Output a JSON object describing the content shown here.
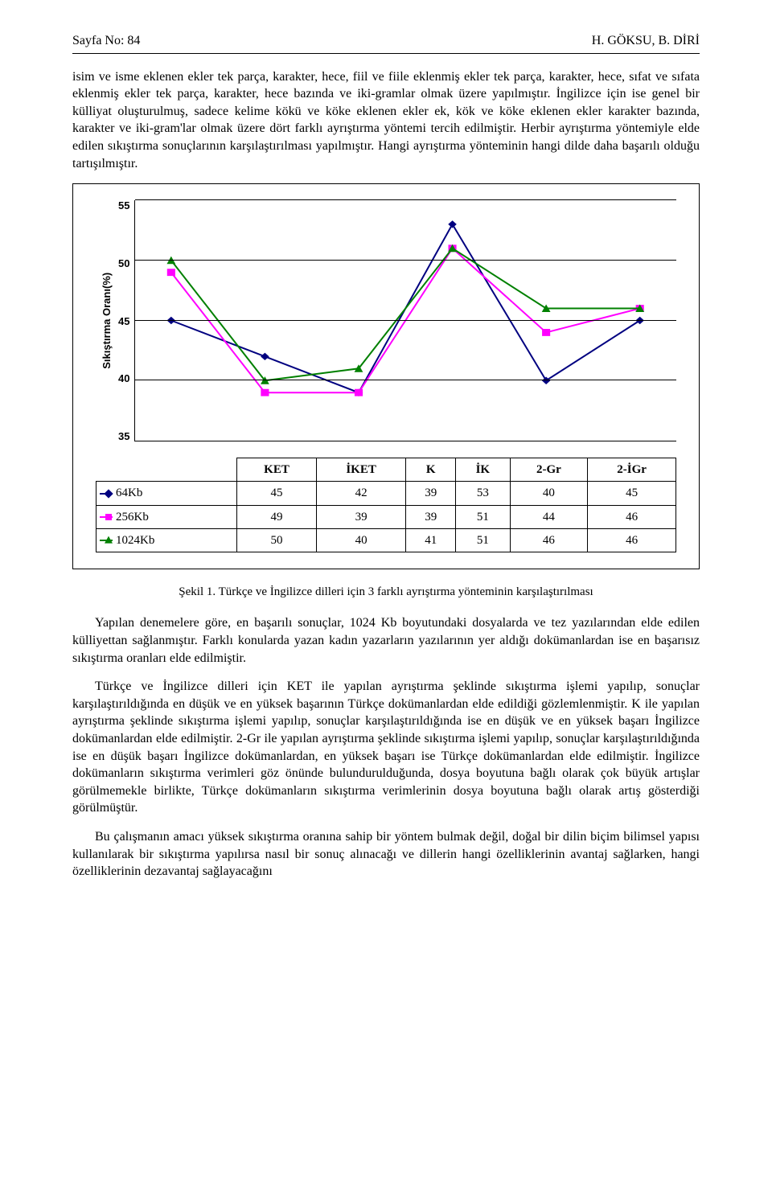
{
  "header": {
    "left": "Sayfa No: 84",
    "right": "H. GÖKSU, B. DİRİ"
  },
  "paragraphs": {
    "p1": "isim ve isme eklenen ekler tek parça, karakter, hece, fiil ve fiile eklenmiş ekler tek parça, karakter, hece, sıfat ve sıfata eklenmiş ekler tek parça, karakter, hece bazında ve iki-gramlar olmak üzere yapılmıştır. İngilizce için ise genel bir külliyat oluşturulmuş, sadece kelime kökü ve köke eklenen ekler ek, kök ve köke eklenen ekler karakter bazında, karakter ve iki-gram'lar olmak üzere dört farklı ayrıştırma yöntemi tercih edilmiştir. Herbir ayrıştırma yöntemiyle elde edilen sıkıştırma sonuçlarının karşılaştırılması yapılmıştır. Hangi ayrıştırma yönteminin hangi dilde daha başarılı olduğu tartışılmıştır.",
    "caption": "Şekil 1. Türkçe ve İngilizce dilleri için 3 farklı ayrıştırma yönteminin karşılaştırılması",
    "p2": "Yapılan denemelere göre, en başarılı sonuçlar, 1024 Kb boyutundaki dosyalarda ve tez yazılarından elde edilen külliyettan sağlanmıştır. Farklı konularda yazan kadın yazarların yazılarının yer aldığı dokümanlardan ise en başarısız sıkıştırma oranları elde edilmiştir.",
    "p3": "Türkçe ve İngilizce dilleri için KET ile yapılan ayrıştırma şeklinde sıkıştırma işlemi yapılıp, sonuçlar karşılaştırıldığında en düşük ve en yüksek başarının Türkçe dokümanlardan elde edildiği gözlemlenmiştir. K ile yapılan ayrıştırma şeklinde sıkıştırma işlemi yapılıp, sonuçlar karşılaştırıldığında ise en düşük ve en yüksek başarı İngilizce dokümanlardan elde edilmiştir. 2-Gr ile yapılan ayrıştırma şeklinde sıkıştırma işlemi yapılıp, sonuçlar karşılaştırıldığında ise en düşük başarı İngilizce dokümanlardan, en yüksek başarı ise Türkçe dokümanlardan elde edilmiştir. İngilizce dokümanların sıkıştırma verimleri göz önünde bulundurulduğunda, dosya boyutuna bağlı olarak çok büyük artışlar görülmemekle birlikte, Türkçe dokümanların sıkıştırma verimlerinin dosya boyutuna bağlı olarak artış gösterdiği görülmüştür.",
    "p4": "Bu çalışmanın amacı yüksek sıkıştırma oranına sahip bir yöntem bulmak değil, doğal bir dilin biçim bilimsel yapısı kullanılarak bir sıkıştırma yapılırsa nasıl bir sonuç alınacağı ve dillerin hangi özelliklerinin avantaj sağlarken, hangi özelliklerinin dezavantaj sağlayacağını"
  },
  "chart": {
    "type": "line",
    "ylabel": "Sıkıştırma Oranı(%)",
    "ylim": [
      35,
      55
    ],
    "ytick_step": 5,
    "yticks": [
      "55",
      "50",
      "45",
      "40",
      "35"
    ],
    "categories": [
      "KET",
      "İKET",
      "K",
      "İK",
      "2-Gr",
      "2-İGr"
    ],
    "grid_color": "#000000",
    "background_color": "#ffffff",
    "line_width": 2,
    "marker_size": 8,
    "series": [
      {
        "name": "64Kb",
        "color": "#000080",
        "marker": "diamond",
        "values": [
          45,
          42,
          39,
          53,
          40,
          45
        ]
      },
      {
        "name": "256Kb",
        "color": "#ff00ff",
        "marker": "square",
        "values": [
          49,
          39,
          39,
          51,
          44,
          46
        ]
      },
      {
        "name": "1024Kb",
        "color": "#008000",
        "marker": "triangle",
        "values": [
          50,
          40,
          41,
          51,
          46,
          46
        ]
      }
    ]
  }
}
